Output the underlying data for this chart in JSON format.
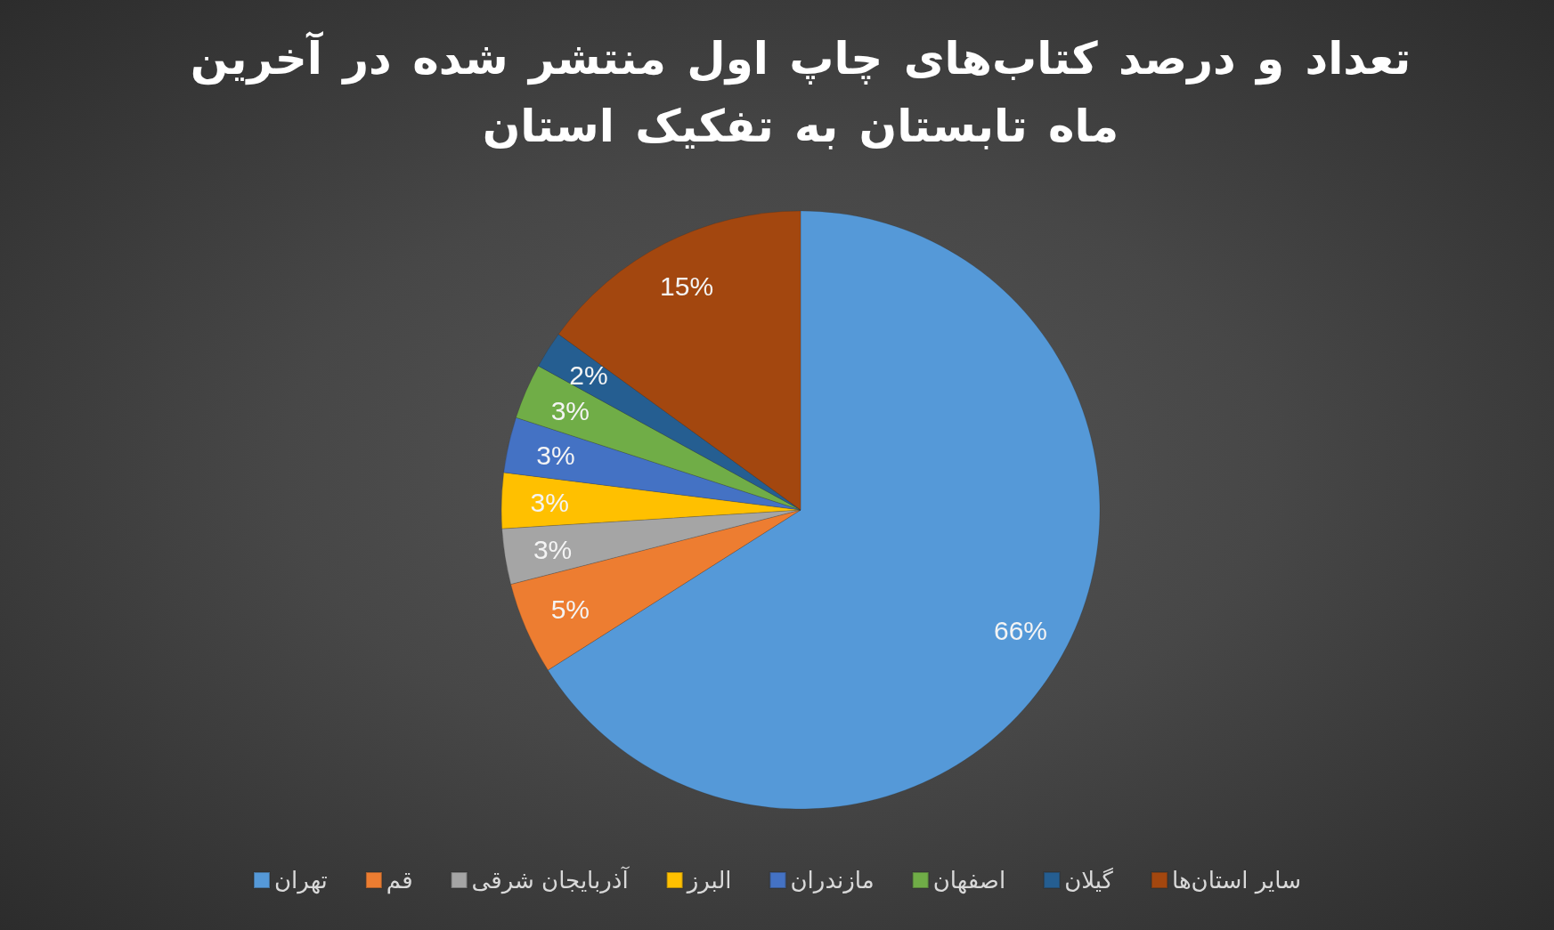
{
  "chart_data": {
    "type": "pie",
    "title": "تعداد و درصد کتاب‌های چاپ اول منتشر شده در آخرین ماه تابستان به تفکیک استان",
    "categories": [
      "تهران",
      "قم",
      "آذربایجان شرقی",
      "البرز",
      "مازندران",
      "اصفهان",
      "گیلان",
      "سایر استان‌ها"
    ],
    "values": [
      66,
      5,
      3,
      3,
      3,
      3,
      2,
      15
    ],
    "value_labels": [
      "66%",
      "5%",
      "3%",
      "3%",
      "3%",
      "3%",
      "2%",
      "15%"
    ],
    "colors": [
      "#5599d8",
      "#ed7d31",
      "#a5a5a5",
      "#ffc000",
      "#4472c4",
      "#70ad47",
      "#255e91",
      "#a3470f"
    ],
    "legend": "bottom"
  }
}
